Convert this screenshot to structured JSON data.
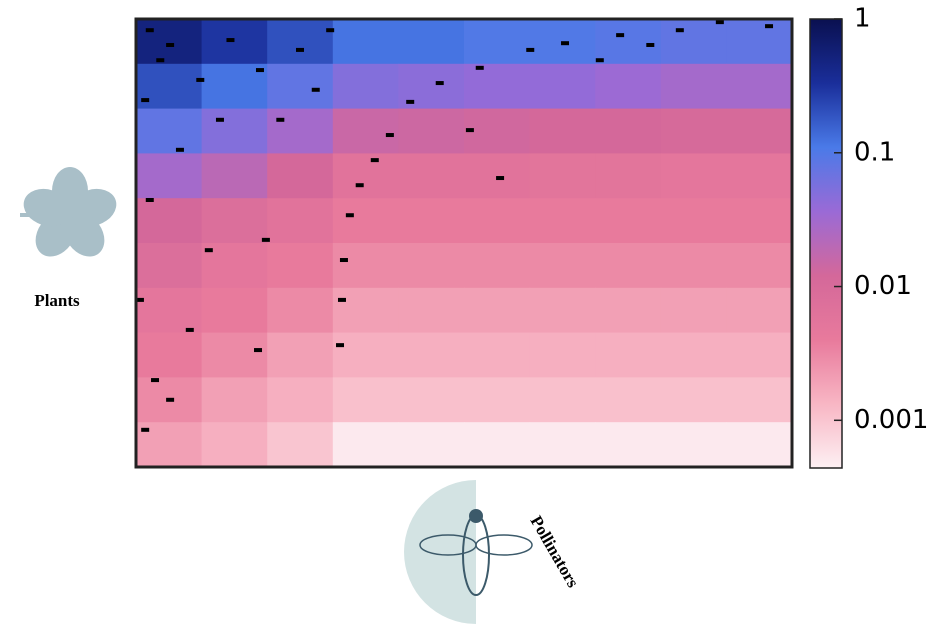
{
  "chart_data": {
    "type": "heatmap",
    "row_label": "Plants",
    "column_label": "Pollinators",
    "z": [
      [
        0.5,
        0.3,
        0.2,
        0.12,
        0.12,
        0.1,
        0.1,
        0.09,
        0.08,
        0.08
      ],
      [
        0.2,
        0.12,
        0.08,
        0.05,
        0.045,
        0.04,
        0.04,
        0.035,
        0.03,
        0.03
      ],
      [
        0.08,
        0.05,
        0.03,
        0.015,
        0.014,
        0.013,
        0.012,
        0.012,
        0.011,
        0.011
      ],
      [
        0.03,
        0.02,
        0.012,
        0.006,
        0.006,
        0.006,
        0.0055,
        0.0055,
        0.005,
        0.005
      ],
      [
        0.012,
        0.008,
        0.006,
        0.004,
        0.004,
        0.004,
        0.004,
        0.004,
        0.004,
        0.004
      ],
      [
        0.008,
        0.005,
        0.004,
        0.003,
        0.003,
        0.003,
        0.003,
        0.003,
        0.003,
        0.003
      ],
      [
        0.005,
        0.004,
        0.003,
        0.002,
        0.002,
        0.002,
        0.002,
        0.002,
        0.002,
        0.002
      ],
      [
        0.004,
        0.003,
        0.002,
        0.0015,
        0.0015,
        0.0015,
        0.0015,
        0.0015,
        0.0015,
        0.0015
      ],
      [
        0.003,
        0.002,
        0.0015,
        0.0011,
        0.0011,
        0.0011,
        0.0011,
        0.0011,
        0.0011,
        0.0011
      ],
      [
        0.002,
        0.0015,
        0.001,
        0.0005,
        0.0005,
        0.0005,
        0.0005,
        0.0005,
        0.0005,
        0.0005
      ]
    ],
    "colors": [
      "#fdf0f3",
      "#f8b6c4",
      "#e87a9c",
      "#d4689a",
      "#9a6ad6",
      "#4a7ae8",
      "#1a2e9a",
      "#0a1050"
    ],
    "zlim": [
      0.00044,
      1
    ],
    "zticks": [
      1,
      0.1,
      0.01,
      0.001
    ],
    "log_scale": true,
    "points": {
      "color": "#000000",
      "x": [
        0.965,
        0.829,
        0.738,
        0.654,
        0.601,
        0.524,
        0.463,
        0.418,
        0.387,
        0.364,
        0.341,
        0.326,
        0.317,
        0.314,
        0.311,
        0.555,
        0.509,
        0.707,
        0.784,
        0.89,
        0.021,
        0.037,
        0.014,
        0.052,
        0.098,
        0.144,
        0.189,
        0.25,
        0.296,
        0.021,
        0.006,
        0.029,
        0.067,
        0.111,
        0.198,
        0.186,
        0.128,
        0.082,
        0.014,
        0.052,
        0.22,
        0.274
      ],
      "y": [
        0.016,
        0.025,
        0.036,
        0.054,
        0.069,
        0.109,
        0.143,
        0.185,
        0.259,
        0.315,
        0.371,
        0.438,
        0.538,
        0.627,
        0.728,
        0.355,
        0.248,
        0.092,
        0.058,
        0.007,
        0.025,
        0.092,
        0.181,
        0.058,
        0.136,
        0.047,
        0.114,
        0.069,
        0.025,
        0.404,
        0.627,
        0.806,
        0.292,
        0.516,
        0.493,
        0.739,
        0.225,
        0.694,
        0.917,
        0.85,
        0.225,
        0.158
      ]
    },
    "xlim": [
      0,
      1
    ],
    "ylim": [
      0,
      1
    ]
  }
}
